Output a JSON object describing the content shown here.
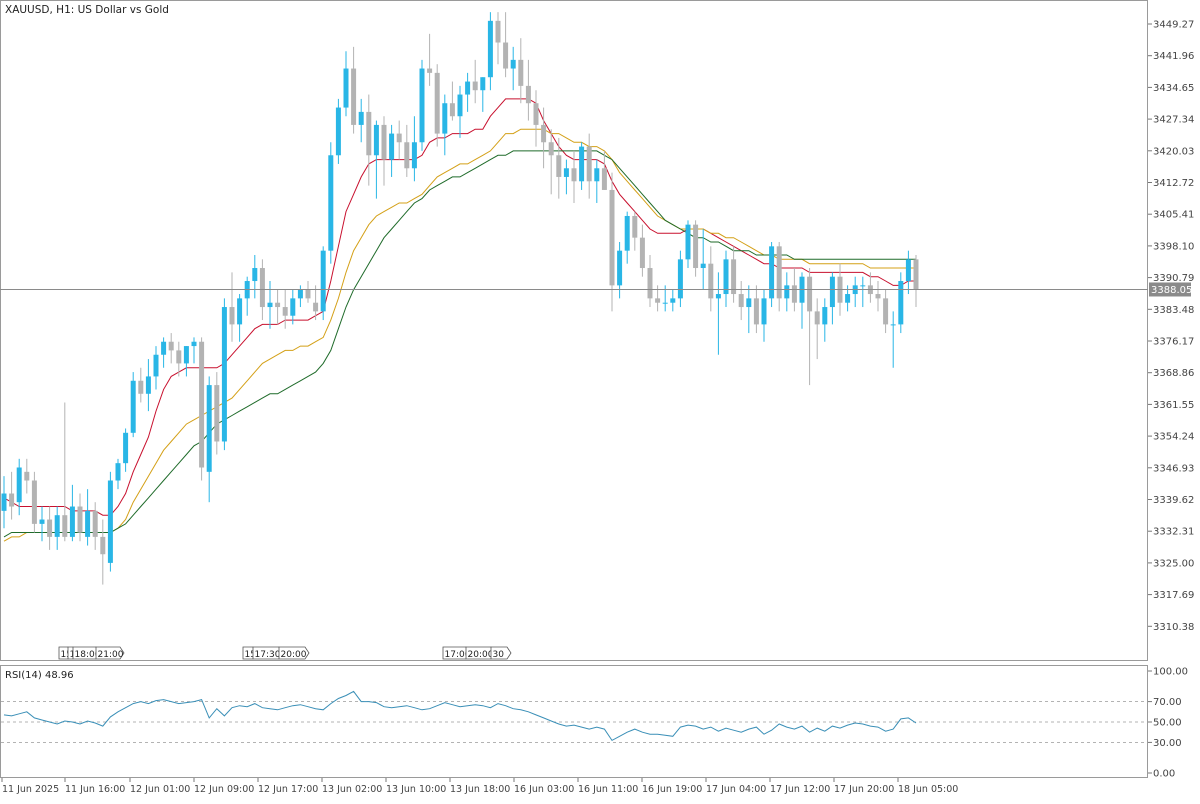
{
  "header": {
    "title": "XAUUSD, H1:  US Dollar vs Gold"
  },
  "price_axis": {
    "labels": [
      "3449.27",
      "3441.96",
      "3434.65",
      "3427.34",
      "3420.03",
      "3412.72",
      "3405.41",
      "3398.10",
      "3390.79",
      "3383.48",
      "3376.17",
      "3368.86",
      "3361.55",
      "3354.24",
      "3346.93",
      "3339.62",
      "3332.31",
      "3325.00",
      "3317.69",
      "3310.38"
    ]
  },
  "current_price": {
    "label": "3388.05",
    "value": 3388.05
  },
  "rsi": {
    "title": "RSI(14) 48.96",
    "levels": [
      "100.00",
      "70.00",
      "50.00",
      "30.00",
      "0.00"
    ]
  },
  "time_axis": {
    "labels": [
      "11 Jun 2025",
      "11 Jun 16:00",
      "12 Jun 01:00",
      "12 Jun 09:00",
      "12 Jun 17:00",
      "13 Jun 02:00",
      "13 Jun 10:00",
      "13 Jun 18:00",
      "16 Jun 03:00",
      "16 Jun 11:00",
      "16 Jun 19:00",
      "17 Jun 04:00",
      "17 Jun 12:00",
      "17 Jun 20:00",
      "18 Jun 05:00"
    ]
  },
  "event_markers": [
    {
      "labels": [
        "15:",
        "1",
        "18:00",
        "21:00"
      ]
    },
    {
      "labels": [
        "15:",
        "17:30",
        "20:00"
      ]
    },
    {
      "labels": [
        "17:00",
        "20:00",
        "30"
      ]
    }
  ],
  "colors": {
    "bull": "#29b6e6",
    "bear": "#b3b3b3",
    "ma_fast": "#c8102e",
    "ma_mid": "#d4a017",
    "ma_slow": "#1f6b2a",
    "rsi_line": "#3a8fb7",
    "grid": "#d9d9d9",
    "axis_text": "#444444"
  },
  "chart_data": {
    "type": "candlestick",
    "title": "XAUUSD, H1:  US Dollar vs Gold",
    "ylim": [
      3305,
      3453
    ],
    "candles": [
      {
        "o": 3337,
        "h": 3345,
        "l": 3333,
        "c": 3341
      },
      {
        "o": 3341,
        "h": 3346,
        "l": 3335,
        "c": 3338
      },
      {
        "o": 3339,
        "h": 3349,
        "l": 3336,
        "c": 3347
      },
      {
        "o": 3346,
        "h": 3349,
        "l": 3341,
        "c": 3344
      },
      {
        "o": 3344,
        "h": 3346,
        "l": 3332,
        "c": 3334
      },
      {
        "o": 3334,
        "h": 3338,
        "l": 3330,
        "c": 3335
      },
      {
        "o": 3335,
        "h": 3338,
        "l": 3328,
        "c": 3331
      },
      {
        "o": 3331,
        "h": 3338,
        "l": 3328,
        "c": 3336
      },
      {
        "o": 3336,
        "h": 3362,
        "l": 3330,
        "c": 3331
      },
      {
        "o": 3331,
        "h": 3343,
        "l": 3330,
        "c": 3338
      },
      {
        "o": 3338,
        "h": 3341,
        "l": 3330,
        "c": 3332
      },
      {
        "o": 3331,
        "h": 3342,
        "l": 3329,
        "c": 3337
      },
      {
        "o": 3337,
        "h": 3339,
        "l": 3328,
        "c": 3331
      },
      {
        "o": 3331,
        "h": 3335,
        "l": 3320,
        "c": 3327
      },
      {
        "o": 3325,
        "h": 3346,
        "l": 3323,
        "c": 3344
      },
      {
        "o": 3344,
        "h": 3349,
        "l": 3342,
        "c": 3348
      },
      {
        "o": 3348,
        "h": 3356,
        "l": 3346,
        "c": 3355
      },
      {
        "o": 3355,
        "h": 3369,
        "l": 3354,
        "c": 3367
      },
      {
        "o": 3367,
        "h": 3370,
        "l": 3362,
        "c": 3364
      },
      {
        "o": 3364,
        "h": 3372,
        "l": 3360,
        "c": 3368
      },
      {
        "o": 3368,
        "h": 3375,
        "l": 3365,
        "c": 3373
      },
      {
        "o": 3373,
        "h": 3377,
        "l": 3370,
        "c": 3376
      },
      {
        "o": 3376,
        "h": 3378,
        "l": 3371,
        "c": 3374
      },
      {
        "o": 3374,
        "h": 3376,
        "l": 3368,
        "c": 3371
      },
      {
        "o": 3371,
        "h": 3375,
        "l": 3368,
        "c": 3375
      },
      {
        "o": 3375,
        "h": 3377,
        "l": 3371,
        "c": 3376
      },
      {
        "o": 3376,
        "h": 3377,
        "l": 3344,
        "c": 3347
      },
      {
        "o": 3346,
        "h": 3368,
        "l": 3339,
        "c": 3366
      },
      {
        "o": 3366,
        "h": 3369,
        "l": 3350,
        "c": 3353
      },
      {
        "o": 3353,
        "h": 3386,
        "l": 3351,
        "c": 3384
      },
      {
        "o": 3384,
        "h": 3392,
        "l": 3376,
        "c": 3380
      },
      {
        "o": 3380,
        "h": 3387,
        "l": 3376,
        "c": 3386
      },
      {
        "o": 3386,
        "h": 3391,
        "l": 3382,
        "c": 3390
      },
      {
        "o": 3390,
        "h": 3396,
        "l": 3386,
        "c": 3393
      },
      {
        "o": 3393,
        "h": 3395,
        "l": 3381,
        "c": 3384
      },
      {
        "o": 3384,
        "h": 3390,
        "l": 3379,
        "c": 3385
      },
      {
        "o": 3385,
        "h": 3388,
        "l": 3380,
        "c": 3384
      },
      {
        "o": 3384,
        "h": 3388,
        "l": 3379,
        "c": 3382
      },
      {
        "o": 3382,
        "h": 3388,
        "l": 3380,
        "c": 3386
      },
      {
        "o": 3386,
        "h": 3389,
        "l": 3384,
        "c": 3388
      },
      {
        "o": 3388,
        "h": 3390,
        "l": 3385,
        "c": 3386
      },
      {
        "o": 3385,
        "h": 3389,
        "l": 3381,
        "c": 3383
      },
      {
        "o": 3383,
        "h": 3398,
        "l": 3381,
        "c": 3397
      },
      {
        "o": 3397,
        "h": 3422,
        "l": 3394,
        "c": 3419
      },
      {
        "o": 3419,
        "h": 3432,
        "l": 3417,
        "c": 3430
      },
      {
        "o": 3430,
        "h": 3443,
        "l": 3428,
        "c": 3439
      },
      {
        "o": 3439,
        "h": 3444,
        "l": 3424,
        "c": 3426
      },
      {
        "o": 3426,
        "h": 3432,
        "l": 3422,
        "c": 3429
      },
      {
        "o": 3429,
        "h": 3433,
        "l": 3412,
        "c": 3419
      },
      {
        "o": 3419,
        "h": 3427,
        "l": 3409,
        "c": 3426
      },
      {
        "o": 3426,
        "h": 3428,
        "l": 3412,
        "c": 3418
      },
      {
        "o": 3418,
        "h": 3426,
        "l": 3414,
        "c": 3424
      },
      {
        "o": 3424,
        "h": 3427,
        "l": 3418,
        "c": 3422
      },
      {
        "o": 3422,
        "h": 3426,
        "l": 3414,
        "c": 3416
      },
      {
        "o": 3416,
        "h": 3428,
        "l": 3413,
        "c": 3422
      },
      {
        "o": 3422,
        "h": 3441,
        "l": 3420,
        "c": 3439
      },
      {
        "o": 3439,
        "h": 3447,
        "l": 3435,
        "c": 3438
      },
      {
        "o": 3438,
        "h": 3440,
        "l": 3421,
        "c": 3424
      },
      {
        "o": 3424,
        "h": 3433,
        "l": 3419,
        "c": 3431
      },
      {
        "o": 3431,
        "h": 3436,
        "l": 3427,
        "c": 3428
      },
      {
        "o": 3428,
        "h": 3435,
        "l": 3423,
        "c": 3433
      },
      {
        "o": 3433,
        "h": 3438,
        "l": 3429,
        "c": 3436
      },
      {
        "o": 3436,
        "h": 3441,
        "l": 3431,
        "c": 3434
      },
      {
        "o": 3434,
        "h": 3437,
        "l": 3429,
        "c": 3437
      },
      {
        "o": 3437,
        "h": 3452,
        "l": 3434,
        "c": 3450
      },
      {
        "o": 3450,
        "h": 3452,
        "l": 3440,
        "c": 3445
      },
      {
        "o": 3445,
        "h": 3452,
        "l": 3437,
        "c": 3439
      },
      {
        "o": 3439,
        "h": 3444,
        "l": 3434,
        "c": 3441
      },
      {
        "o": 3441,
        "h": 3446,
        "l": 3431,
        "c": 3435
      },
      {
        "o": 3435,
        "h": 3441,
        "l": 3427,
        "c": 3431
      },
      {
        "o": 3431,
        "h": 3434,
        "l": 3421,
        "c": 3426
      },
      {
        "o": 3426,
        "h": 3430,
        "l": 3416,
        "c": 3422
      },
      {
        "o": 3422,
        "h": 3425,
        "l": 3410,
        "c": 3419
      },
      {
        "o": 3419,
        "h": 3423,
        "l": 3409,
        "c": 3414
      },
      {
        "o": 3414,
        "h": 3418,
        "l": 3410,
        "c": 3416
      },
      {
        "o": 3416,
        "h": 3420,
        "l": 3408,
        "c": 3413
      },
      {
        "o": 3413,
        "h": 3422,
        "l": 3411,
        "c": 3421
      },
      {
        "o": 3421,
        "h": 3424,
        "l": 3409,
        "c": 3413
      },
      {
        "o": 3413,
        "h": 3418,
        "l": 3408,
        "c": 3416
      },
      {
        "o": 3416,
        "h": 3420,
        "l": 3411,
        "c": 3411
      },
      {
        "o": 3411,
        "h": 3415,
        "l": 3383,
        "c": 3389
      },
      {
        "o": 3389,
        "h": 3399,
        "l": 3386,
        "c": 3397
      },
      {
        "o": 3397,
        "h": 3406,
        "l": 3394,
        "c": 3405
      },
      {
        "o": 3405,
        "h": 3406,
        "l": 3397,
        "c": 3400
      },
      {
        "o": 3400,
        "h": 3403,
        "l": 3391,
        "c": 3393
      },
      {
        "o": 3393,
        "h": 3396,
        "l": 3384,
        "c": 3386
      },
      {
        "o": 3386,
        "h": 3389,
        "l": 3383,
        "c": 3385
      },
      {
        "o": 3385,
        "h": 3389,
        "l": 3383,
        "c": 3385
      },
      {
        "o": 3385,
        "h": 3388,
        "l": 3383,
        "c": 3386
      },
      {
        "o": 3386,
        "h": 3397,
        "l": 3384,
        "c": 3395
      },
      {
        "o": 3395,
        "h": 3404,
        "l": 3393,
        "c": 3403
      },
      {
        "o": 3403,
        "h": 3404,
        "l": 3391,
        "c": 3393
      },
      {
        "o": 3393,
        "h": 3402,
        "l": 3388,
        "c": 3394
      },
      {
        "o": 3394,
        "h": 3398,
        "l": 3383,
        "c": 3386
      },
      {
        "o": 3386,
        "h": 3392,
        "l": 3373,
        "c": 3387
      },
      {
        "o": 3387,
        "h": 3397,
        "l": 3384,
        "c": 3395
      },
      {
        "o": 3395,
        "h": 3398,
        "l": 3385,
        "c": 3387
      },
      {
        "o": 3387,
        "h": 3390,
        "l": 3381,
        "c": 3384
      },
      {
        "o": 3384,
        "h": 3389,
        "l": 3378,
        "c": 3386
      },
      {
        "o": 3386,
        "h": 3389,
        "l": 3378,
        "c": 3380
      },
      {
        "o": 3380,
        "h": 3388,
        "l": 3376,
        "c": 3386
      },
      {
        "o": 3386,
        "h": 3399,
        "l": 3384,
        "c": 3398
      },
      {
        "o": 3398,
        "h": 3399,
        "l": 3383,
        "c": 3386
      },
      {
        "o": 3386,
        "h": 3392,
        "l": 3383,
        "c": 3389
      },
      {
        "o": 3389,
        "h": 3393,
        "l": 3383,
        "c": 3385
      },
      {
        "o": 3385,
        "h": 3392,
        "l": 3379,
        "c": 3391
      },
      {
        "o": 3391,
        "h": 3393,
        "l": 3366,
        "c": 3383
      },
      {
        "o": 3383,
        "h": 3386,
        "l": 3372,
        "c": 3380
      },
      {
        "o": 3380,
        "h": 3386,
        "l": 3376,
        "c": 3384
      },
      {
        "o": 3384,
        "h": 3392,
        "l": 3380,
        "c": 3391
      },
      {
        "o": 3391,
        "h": 3394,
        "l": 3382,
        "c": 3385
      },
      {
        "o": 3385,
        "h": 3389,
        "l": 3383,
        "c": 3387
      },
      {
        "o": 3387,
        "h": 3391,
        "l": 3384,
        "c": 3389
      },
      {
        "o": 3389,
        "h": 3391,
        "l": 3384,
        "c": 3389
      },
      {
        "o": 3389,
        "h": 3392,
        "l": 3385,
        "c": 3387
      },
      {
        "o": 3387,
        "h": 3390,
        "l": 3383,
        "c": 3386
      },
      {
        "o": 3386,
        "h": 3388,
        "l": 3378,
        "c": 3380
      },
      {
        "o": 3380,
        "h": 3383,
        "l": 3370,
        "c": 3380
      },
      {
        "o": 3380,
        "h": 3392,
        "l": 3378,
        "c": 3390
      },
      {
        "o": 3390,
        "h": 3397,
        "l": 3387,
        "c": 3395
      },
      {
        "o": 3395,
        "h": 3396,
        "l": 3384,
        "c": 3388
      }
    ],
    "ma_fast": [
      3340,
      3339,
      3338,
      3338,
      3338,
      3338,
      3338,
      3338,
      3338,
      3337,
      3337,
      3337,
      3337,
      3336,
      3336,
      3338,
      3341,
      3346,
      3350,
      3354,
      3360,
      3365,
      3368,
      3369,
      3370,
      3370,
      3370,
      3370,
      3370,
      3371,
      3373,
      3375,
      3377,
      3379,
      3380,
      3380,
      3380,
      3381,
      3381,
      3381,
      3381,
      3382,
      3383,
      3390,
      3398,
      3406,
      3410,
      3414,
      3417,
      3418,
      3418,
      3418,
      3418,
      3418,
      3418,
      3419,
      3422,
      3423,
      3423,
      3424,
      3424,
      3424,
      3425,
      3425,
      3428,
      3430,
      3432,
      3432,
      3432,
      3432,
      3431,
      3427,
      3424,
      3421,
      3419,
      3418,
      3418,
      3418,
      3418,
      3417,
      3413,
      3410,
      3408,
      3406,
      3404,
      3402,
      3401,
      3401,
      3401,
      3401,
      3402,
      3402,
      3402,
      3401,
      3400,
      3399,
      3398,
      3397,
      3396,
      3395,
      3394,
      3394,
      3393,
      3393,
      3393,
      3393,
      3392,
      3392,
      3392,
      3392,
      3392,
      3392,
      3392,
      3392,
      3391,
      3391,
      3390,
      3389,
      3389,
      3390,
      3390
    ],
    "ma_mid": [
      3330,
      3331,
      3331,
      3332,
      3332,
      3332,
      3332,
      3332,
      3332,
      3332,
      3332,
      3332,
      3332,
      3332,
      3332,
      3333,
      3335,
      3339,
      3342,
      3345,
      3348,
      3351,
      3353,
      3355,
      3357,
      3358,
      3359,
      3360,
      3361,
      3362,
      3363,
      3365,
      3367,
      3369,
      3371,
      3372,
      3373,
      3374,
      3374,
      3375,
      3375,
      3376,
      3377,
      3381,
      3386,
      3392,
      3397,
      3400,
      3403,
      3405,
      3406,
      3407,
      3408,
      3408,
      3409,
      3410,
      3412,
      3414,
      3415,
      3416,
      3417,
      3417,
      3418,
      3419,
      3420,
      3422,
      3424,
      3424,
      3425,
      3425,
      3425,
      3425,
      3424,
      3424,
      3423,
      3422,
      3422,
      3421,
      3421,
      3420,
      3418,
      3415,
      3413,
      3411,
      3409,
      3407,
      3405,
      3404,
      3403,
      3402,
      3402,
      3402,
      3402,
      3401,
      3401,
      3400,
      3400,
      3399,
      3398,
      3397,
      3396,
      3396,
      3395,
      3395,
      3395,
      3395,
      3394,
      3394,
      3394,
      3394,
      3394,
      3394,
      3394,
      3394,
      3393,
      3393,
      3393,
      3393,
      3393,
      3393,
      3393
    ],
    "ma_slow": [
      3331,
      3332,
      3332,
      3332,
      3332,
      3332,
      3332,
      3332,
      3332,
      3332,
      3332,
      3332,
      3332,
      3332,
      3332,
      3333,
      3334,
      3336,
      3338,
      3340,
      3342,
      3344,
      3346,
      3348,
      3350,
      3352,
      3353,
      3355,
      3357,
      3358,
      3359,
      3360,
      3361,
      3362,
      3363,
      3364,
      3364,
      3365,
      3366,
      3367,
      3368,
      3369,
      3371,
      3374,
      3379,
      3384,
      3388,
      3391,
      3394,
      3397,
      3400,
      3402,
      3404,
      3406,
      3408,
      3409,
      3411,
      3412,
      3413,
      3414,
      3414,
      3415,
      3416,
      3417,
      3418,
      3419,
      3419,
      3420,
      3420,
      3420,
      3420,
      3420,
      3420,
      3420,
      3420,
      3420,
      3420,
      3420,
      3420,
      3419,
      3418,
      3416,
      3414,
      3412,
      3410,
      3408,
      3406,
      3404,
      3403,
      3402,
      3401,
      3400,
      3400,
      3399,
      3399,
      3398,
      3397,
      3397,
      3397,
      3396,
      3396,
      3396,
      3396,
      3396,
      3395,
      3395,
      3395,
      3395,
      3395,
      3395,
      3395,
      3395,
      3395,
      3395,
      3395,
      3395,
      3395,
      3395,
      3395,
      3395,
      3395
    ],
    "rsi_values": [
      57,
      56,
      58,
      60,
      54,
      52,
      50,
      48,
      51,
      50,
      48,
      51,
      49,
      46,
      55,
      60,
      64,
      68,
      70,
      68,
      71,
      72,
      70,
      68,
      69,
      70,
      72,
      54,
      63,
      56,
      64,
      66,
      65,
      68,
      64,
      63,
      62,
      64,
      66,
      67,
      65,
      63,
      62,
      68,
      73,
      76,
      80,
      70,
      70,
      69,
      65,
      64,
      65,
      66,
      64,
      62,
      63,
      66,
      69,
      67,
      65,
      66,
      67,
      66,
      64,
      68,
      66,
      63,
      62,
      60,
      57,
      54,
      51,
      48,
      46,
      47,
      45,
      43,
      45,
      43,
      32,
      36,
      40,
      43,
      40,
      38,
      38,
      37,
      36,
      45,
      47,
      46,
      43,
      45,
      41,
      44,
      42,
      40,
      43,
      45,
      38,
      42,
      48,
      45,
      43,
      46,
      40,
      44,
      41,
      46,
      44,
      47,
      49,
      48,
      46,
      45,
      41,
      43,
      53,
      54,
      49
    ]
  }
}
